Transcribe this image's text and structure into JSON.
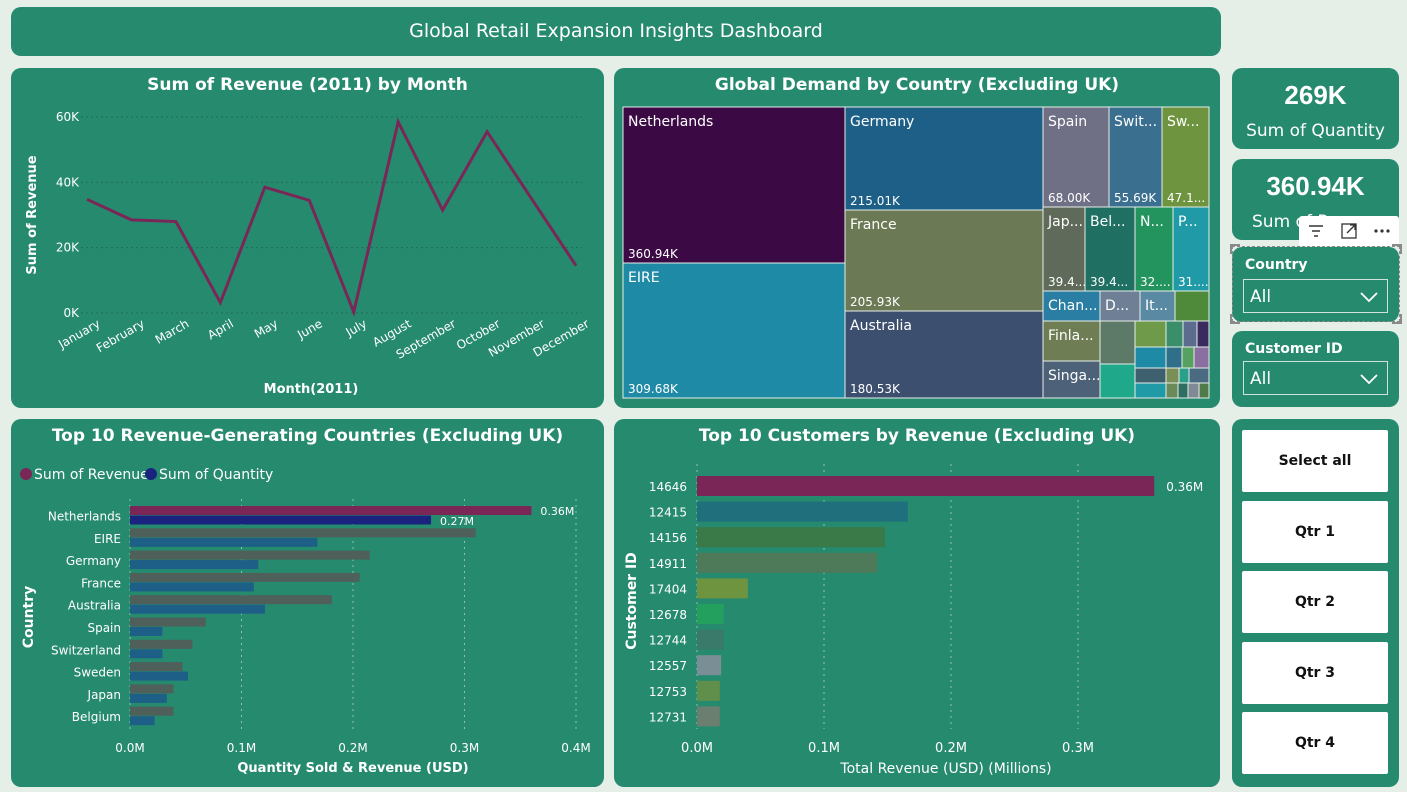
{
  "dashboard": {
    "title": "Global Retail Expansion Insights Dashboard"
  },
  "colors": {
    "panel": "#268a6e",
    "background": "#e6eee8",
    "line": "#7a2656",
    "revenue": "#7a2656",
    "quantity": "#1a237e"
  },
  "kpis": [
    {
      "value": "269K",
      "label": "Sum of Quantity"
    },
    {
      "value": "360.94K",
      "label": "Sum of Revenue"
    }
  ],
  "slicers": {
    "country": {
      "label": "Country",
      "value": "All"
    },
    "customer": {
      "label": "Customer ID",
      "value": "All"
    }
  },
  "toolbar": {
    "icons": [
      "filter-icon",
      "focus-mode-icon",
      "more-options-icon"
    ]
  },
  "buttons": {
    "select_all": "Select all",
    "q1": "Qtr 1",
    "q2": "Qtr 2",
    "q3": "Qtr 3",
    "q4": "Qtr 4"
  },
  "chart_data": [
    {
      "type": "line",
      "title": "Sum of Revenue (2011) by Month",
      "xlabel": "Month(2011)",
      "ylabel": "Sum of Revenue",
      "categories": [
        "January",
        "February",
        "March",
        "April",
        "May",
        "June",
        "July",
        "August",
        "September",
        "October",
        "November",
        "December"
      ],
      "values": [
        34800,
        28500,
        28000,
        3200,
        38500,
        34500,
        300,
        58500,
        31500,
        55500,
        35000,
        14500
      ],
      "ylim": [
        0,
        60000
      ],
      "yticks": [
        "0K",
        "20K",
        "40K",
        "60K"
      ],
      "grid": true,
      "color": "#7a2656"
    },
    {
      "type": "treemap",
      "title": "Global Demand by Country (Excluding UK)",
      "cells": [
        {
          "label": "Netherlands",
          "value": "360.94K",
          "color": "#3b0a45"
        },
        {
          "label": "EIRE",
          "value": "309.68K",
          "color": "#1f8aa6"
        },
        {
          "label": "Germany",
          "value": "215.01K",
          "color": "#1d5f87"
        },
        {
          "label": "France",
          "value": "205.93K",
          "color": "#6b7a55"
        },
        {
          "label": "Australia",
          "value": "180.53K",
          "color": "#3d4f6e"
        },
        {
          "label": "Spain",
          "value": "68.00K",
          "color": "#6f6f86"
        },
        {
          "label": "Swit...",
          "value": "55.69K",
          "color": "#3a6f8f"
        },
        {
          "label": "Sw...",
          "value": "47.1...",
          "color": "#6e9440"
        },
        {
          "label": "Jap...",
          "value": "39.4...",
          "color": "#5f6a5a"
        },
        {
          "label": "Bel...",
          "value": "39.4...",
          "color": "#1f6f62"
        },
        {
          "label": "N...",
          "value": "32....",
          "color": "#23945e"
        },
        {
          "label": "P...",
          "value": "31....",
          "color": "#1f9aa6"
        },
        {
          "label": "Chan...",
          "value": "",
          "color": "#2a7da3"
        },
        {
          "label": "D...",
          "value": "",
          "color": "#6f7f95"
        },
        {
          "label": "It...",
          "value": "",
          "color": "#5a8aa3"
        },
        {
          "label": "Finla...",
          "value": "",
          "color": "#6f7d55"
        },
        {
          "label": "Singa...",
          "value": "",
          "color": "#4d6278"
        }
      ]
    },
    {
      "type": "bar",
      "title": "Top 10 Revenue-Generating Countries (Excluding UK)",
      "xlabel": "Quantity Sold & Revenue (USD)",
      "ylabel": "Country",
      "categories": [
        "Netherlands",
        "EIRE",
        "Germany",
        "France",
        "Australia",
        "Spain",
        "Switzerland",
        "Sweden",
        "Japan",
        "Belgium"
      ],
      "series": [
        {
          "name": "Sum of Revenue",
          "values": [
            0.36,
            0.31,
            0.215,
            0.206,
            0.181,
            0.068,
            0.056,
            0.047,
            0.039,
            0.039
          ]
        },
        {
          "name": "Sum of Quantity",
          "values": [
            0.27,
            0.168,
            0.115,
            0.111,
            0.121,
            0.029,
            0.029,
            0.052,
            0.033,
            0.022
          ]
        }
      ],
      "data_labels": [
        "0.36M",
        "0.27M"
      ],
      "xlim": [
        0,
        0.4
      ],
      "xticks": [
        "0.0M",
        "0.1M",
        "0.2M",
        "0.3M",
        "0.4M"
      ],
      "legend": "top-left"
    },
    {
      "type": "bar",
      "title": "Top 10 Customers by Revenue (Excluding UK)",
      "xlabel": "Total Revenue (USD) (Millions)",
      "ylabel": "Customer ID",
      "categories": [
        "14646",
        "12415",
        "14156",
        "14911",
        "17404",
        "12678",
        "12744",
        "12557",
        "12753",
        "12731"
      ],
      "values": [
        0.36,
        0.166,
        0.148,
        0.142,
        0.04,
        0.021,
        0.021,
        0.019,
        0.018,
        0.018
      ],
      "colors": [
        "#7a2656",
        "#1f6f7d",
        "#3a7a48",
        "#4f7a5a",
        "#6e9440",
        "#23a05e",
        "#3a7a6a",
        "#7a8f95",
        "#5f8f4a",
        "#6a7f70"
      ],
      "data_labels": [
        "0.36M"
      ],
      "xlim": [
        0,
        0.4
      ],
      "xticks": [
        "0.0M",
        "0.1M",
        "0.2M",
        "0.3M"
      ]
    }
  ]
}
